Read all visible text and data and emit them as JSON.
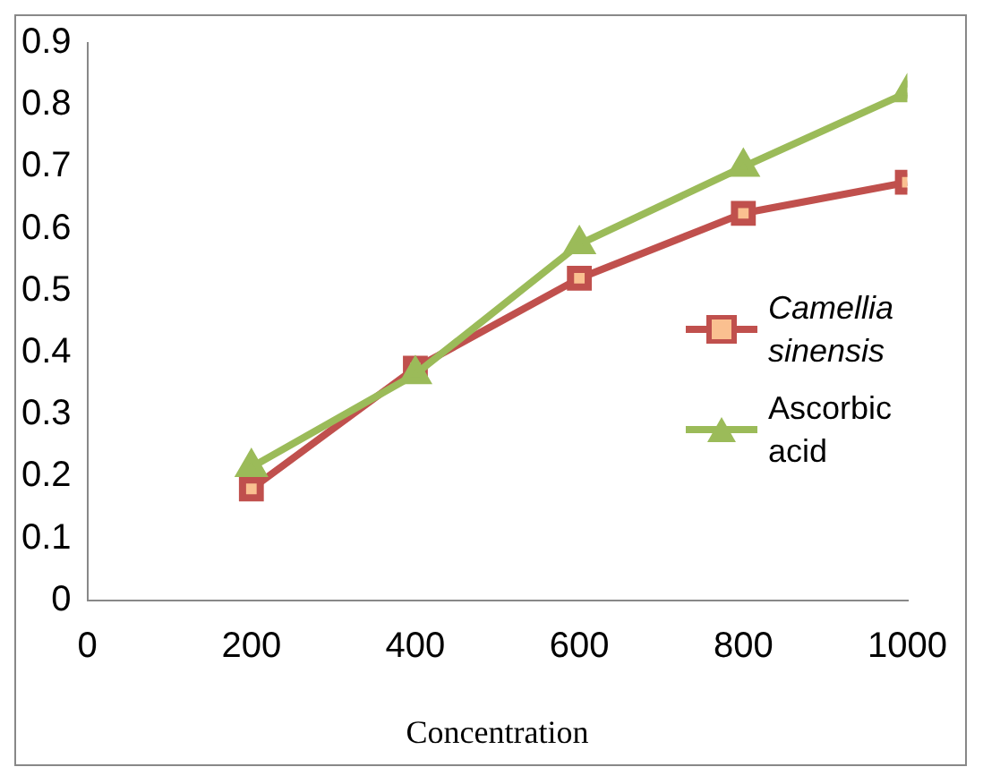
{
  "chart_data": {
    "type": "line",
    "xlabel": "Concentration",
    "x": [
      200,
      400,
      600,
      800,
      1000
    ],
    "series": [
      {
        "name": "Camellia sinensis",
        "color": "#c0504d",
        "marker": "square",
        "values": [
          0.18,
          0.375,
          0.52,
          0.625,
          0.675
        ]
      },
      {
        "name": "Ascorbic acid",
        "color": "#9bbb59",
        "marker": "triangle",
        "values": [
          0.215,
          0.365,
          0.575,
          0.7,
          0.82
        ]
      }
    ],
    "xlim": [
      0,
      1000
    ],
    "xticks": [
      0,
      200,
      400,
      600,
      800,
      1000
    ],
    "ylim": [
      0,
      0.9
    ],
    "yticks": [
      0,
      0.1,
      0.2,
      0.3,
      0.4,
      0.5,
      0.6,
      0.7,
      0.8,
      0.9
    ],
    "grid": false,
    "legend": "right"
  }
}
